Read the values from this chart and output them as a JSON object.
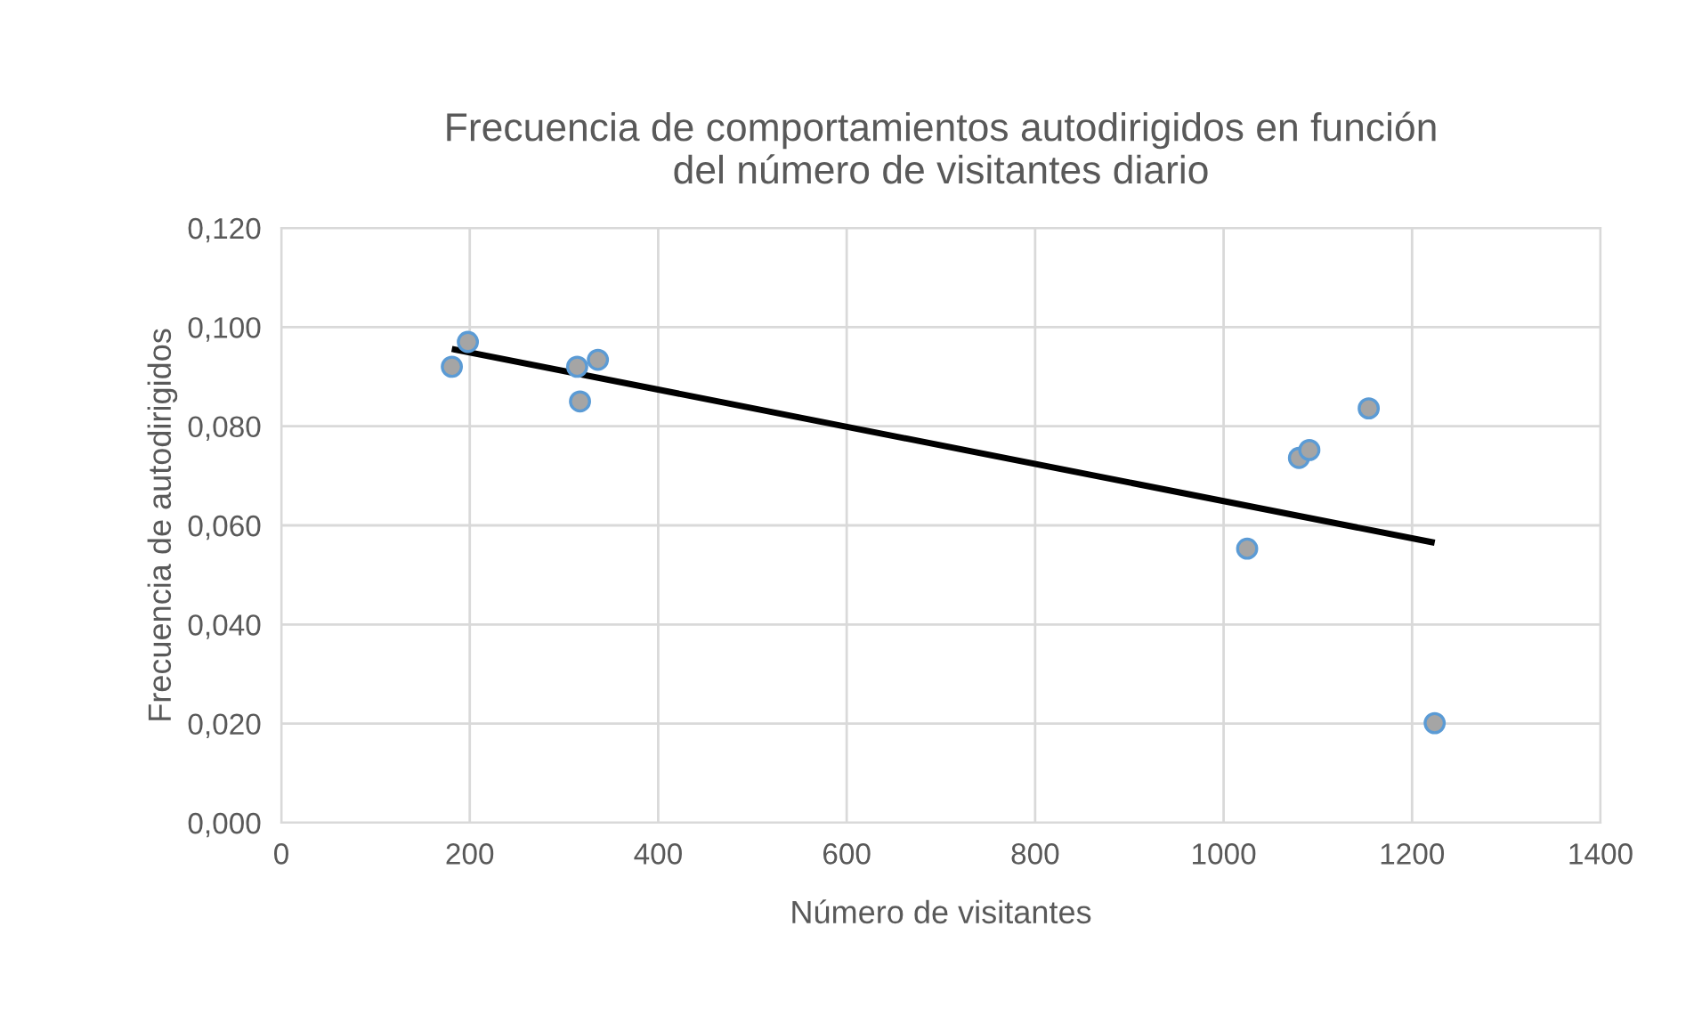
{
  "chart_data": {
    "type": "scatter",
    "title": "Frecuencia de comportamientos autodirigidos en función\ndel número de visitantes diario",
    "xlabel": "Número de visitantes",
    "ylabel": "Frecuencia de autodirigidos",
    "series": [
      {
        "marker": "circle",
        "color": "#a5a5a5",
        "x": [
          181,
          198,
          317,
          314,
          336,
          1025,
          1080,
          1091,
          1154,
          1224
        ],
        "values": [
          0.092,
          0.097,
          0.085,
          0.092,
          0.0934,
          0.0553,
          0.0736,
          0.0752,
          0.0836,
          0.0201
        ]
      },
      {
        "type": "line",
        "marker": "none",
        "color": "#000000",
        "x": [
          181,
          1224
        ],
        "values": [
          0.0956,
          0.0565
        ]
      }
    ],
    "xlim": [
      0,
      1400
    ],
    "xticks": [
      0,
      200,
      400,
      600,
      800,
      1000,
      1200,
      1400
    ],
    "ylim": [
      0,
      0.12
    ],
    "yticks": [
      {
        "value": 0,
        "label": "0,000"
      },
      {
        "value": 0.02,
        "label": "0,020"
      },
      {
        "value": 0.04,
        "label": "0,040"
      },
      {
        "value": 0.06,
        "label": "0,060"
      },
      {
        "value": 0.08,
        "label": "0,080"
      },
      {
        "value": 0.1,
        "label": "0,100"
      },
      {
        "value": 0.12,
        "label": "0,120"
      }
    ],
    "grid": true,
    "legend": false
  }
}
